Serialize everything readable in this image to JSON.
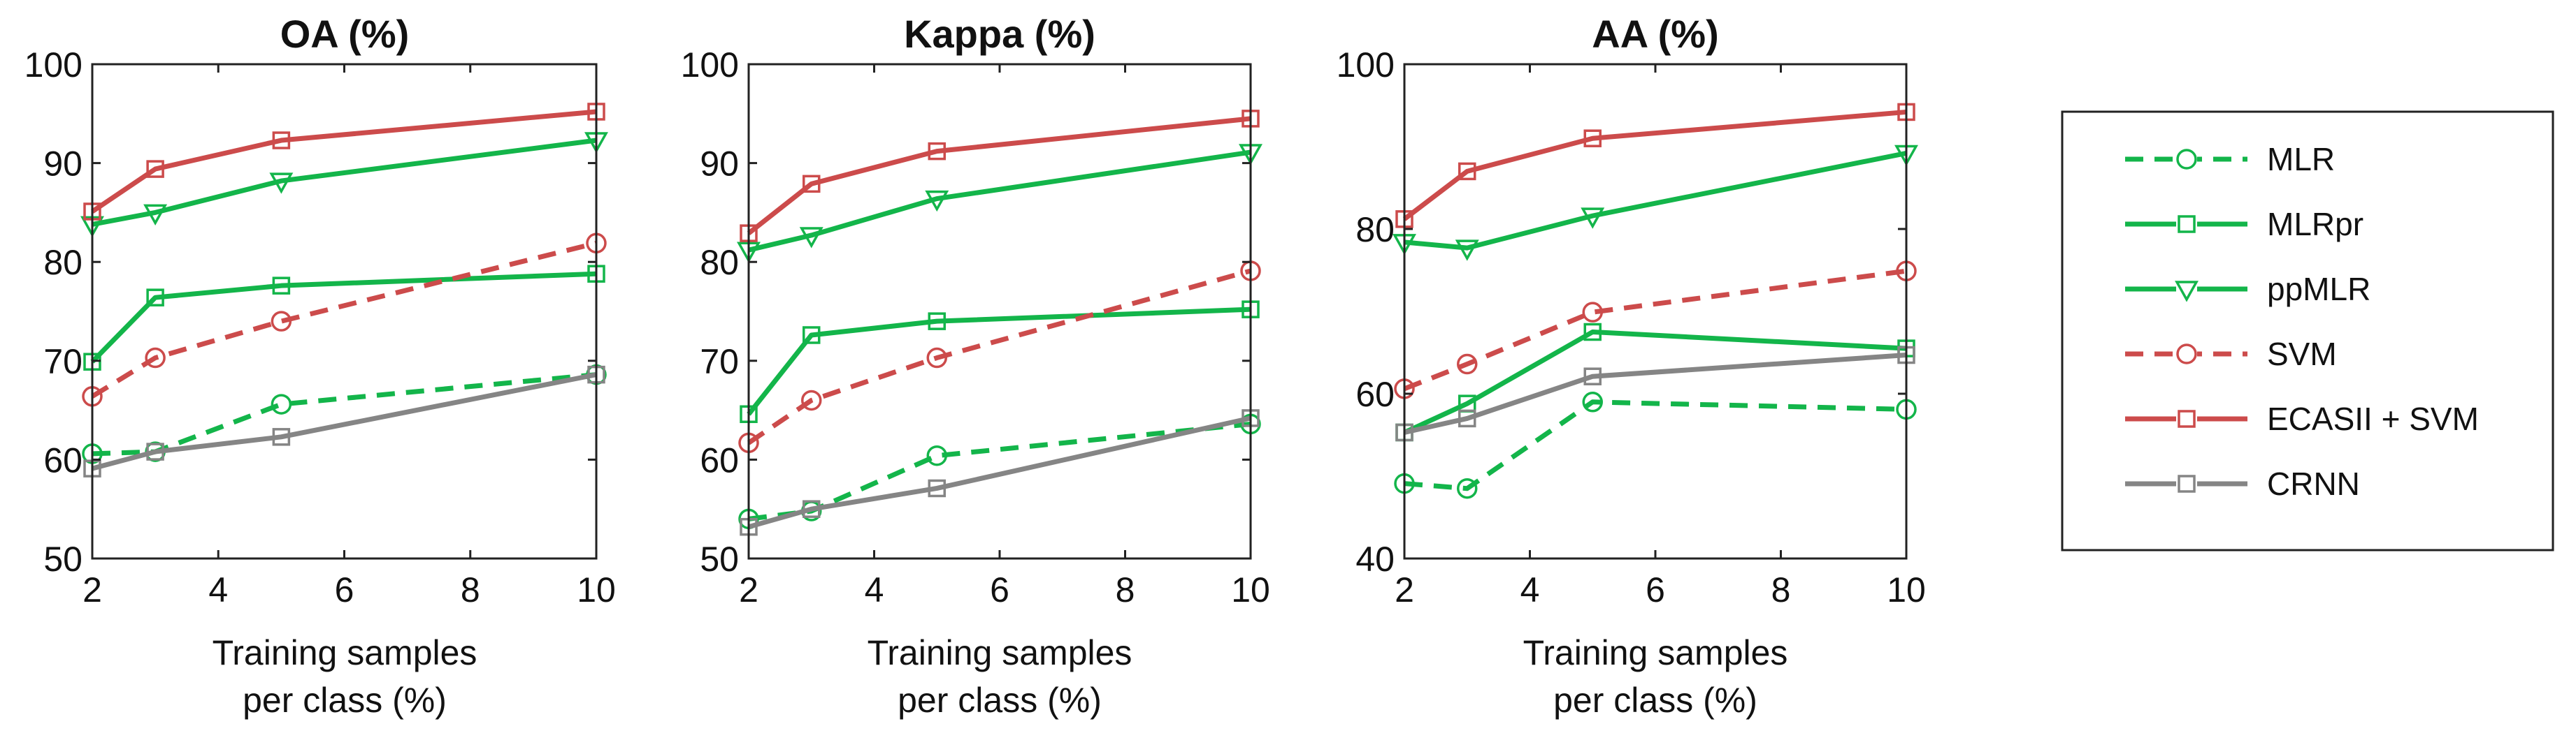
{
  "colors": {
    "green": "#13b54a",
    "red": "#cc4b4b",
    "gray": "#858585",
    "axis": "#222222",
    "text": "#111111"
  },
  "legend": {
    "items": [
      {
        "label": "MLR",
        "color": "#13b54a",
        "dashed": true,
        "marker": "circle"
      },
      {
        "label": "MLRpr",
        "color": "#13b54a",
        "dashed": false,
        "marker": "square"
      },
      {
        "label": "ppMLR",
        "color": "#13b54a",
        "dashed": false,
        "marker": "triangle-down"
      },
      {
        "label": "SVM",
        "color": "#cc4b4b",
        "dashed": true,
        "marker": "circle"
      },
      {
        "label": "ECASII + SVM",
        "color": "#cc4b4b",
        "dashed": false,
        "marker": "square"
      },
      {
        "label": "CRNN",
        "color": "#858585",
        "dashed": false,
        "marker": "square"
      }
    ]
  },
  "chart_data": [
    {
      "type": "line",
      "title": "OA (%)",
      "xlabel": [
        "Training samples",
        "per class (%)"
      ],
      "ylabel": "",
      "x": [
        2,
        3,
        5,
        10
      ],
      "xlim": [
        2,
        10
      ],
      "ylim": [
        50,
        100
      ],
      "xticks": [
        2,
        4,
        6,
        8,
        10
      ],
      "yticks": [
        50,
        60,
        70,
        80,
        90,
        100
      ],
      "series": [
        {
          "name": "MLR",
          "values": [
            60.6,
            60.8,
            65.6,
            68.6
          ]
        },
        {
          "name": "MLRpr",
          "values": [
            69.9,
            76.4,
            77.6,
            78.8
          ]
        },
        {
          "name": "ppMLR",
          "values": [
            83.8,
            85.0,
            88.2,
            92.3
          ]
        },
        {
          "name": "SVM",
          "values": [
            66.4,
            70.3,
            74.0,
            81.9
          ]
        },
        {
          "name": "ECASII + SVM",
          "values": [
            85.1,
            89.4,
            92.3,
            95.2
          ]
        },
        {
          "name": "CRNN",
          "values": [
            59.1,
            60.8,
            62.3,
            68.6
          ]
        }
      ]
    },
    {
      "type": "line",
      "title": "Kappa (%)",
      "xlabel": [
        "Training samples",
        "per class (%)"
      ],
      "ylabel": "",
      "x": [
        2,
        3,
        5,
        10
      ],
      "xlim": [
        2,
        10
      ],
      "ylim": [
        50,
        100
      ],
      "xticks": [
        2,
        4,
        6,
        8,
        10
      ],
      "yticks": [
        50,
        60,
        70,
        80,
        90,
        100
      ],
      "series": [
        {
          "name": "MLR",
          "values": [
            54.0,
            54.8,
            60.4,
            63.6
          ]
        },
        {
          "name": "MLRpr",
          "values": [
            64.6,
            72.6,
            74.0,
            75.2
          ]
        },
        {
          "name": "ppMLR",
          "values": [
            81.2,
            82.7,
            86.4,
            91.1
          ]
        },
        {
          "name": "SVM",
          "values": [
            61.7,
            66.0,
            70.3,
            79.1
          ]
        },
        {
          "name": "ECASII + SVM",
          "values": [
            82.9,
            87.9,
            91.2,
            94.5
          ]
        },
        {
          "name": "CRNN",
          "values": [
            53.2,
            55.0,
            57.1,
            64.2
          ]
        }
      ]
    },
    {
      "type": "line",
      "title": "AA (%)",
      "xlabel": [
        "Training samples",
        "per class (%)"
      ],
      "ylabel": "",
      "x": [
        2,
        3,
        5,
        10
      ],
      "xlim": [
        2,
        10
      ],
      "ylim": [
        40,
        100
      ],
      "xticks": [
        2,
        4,
        6,
        8,
        10
      ],
      "yticks": [
        40,
        60,
        80,
        100
      ],
      "series": [
        {
          "name": "MLR",
          "values": [
            49.1,
            48.5,
            59.0,
            58.1
          ]
        },
        {
          "name": "MLRpr",
          "values": [
            55.3,
            58.8,
            67.5,
            65.5
          ]
        },
        {
          "name": "ppMLR",
          "values": [
            78.4,
            77.7,
            81.6,
            89.2
          ]
        },
        {
          "name": "SVM",
          "values": [
            60.6,
            63.6,
            69.9,
            74.9
          ]
        },
        {
          "name": "ECASII + SVM",
          "values": [
            81.2,
            87.0,
            91.0,
            94.2
          ]
        },
        {
          "name": "CRNN",
          "values": [
            55.3,
            57.0,
            62.1,
            64.7
          ]
        }
      ]
    }
  ]
}
